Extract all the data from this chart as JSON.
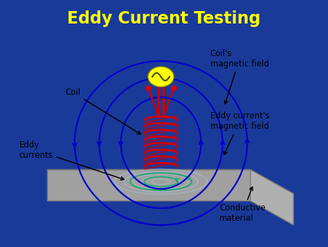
{
  "title": "Eddy Current Testing",
  "title_color": "#FFFF00",
  "title_fontsize": 17,
  "bg_outer": "#1a3a9a",
  "bg_inner": "#ffffff",
  "coil_color": "#cc0000",
  "wire_color": "#cc0000",
  "field_color": "#0000cc",
  "eddy_ring_color": "#aabbcc",
  "eddy_color": "#00aa66",
  "source_color": "#ffff00",
  "material_top": "#c8c8c8",
  "material_front": "#a0a0a0",
  "material_left": "#b0b0b0",
  "labels": {
    "coil": "Coil",
    "coils_field": "Coil's\nmagnetic field",
    "eddy_field": "Eddy current's\nmagnetic field",
    "eddy_currents": "Eddy\ncurrents",
    "conductive": "Conductive\nmaterial"
  },
  "label_fontsize": 8.5,
  "label_color": "#000000"
}
